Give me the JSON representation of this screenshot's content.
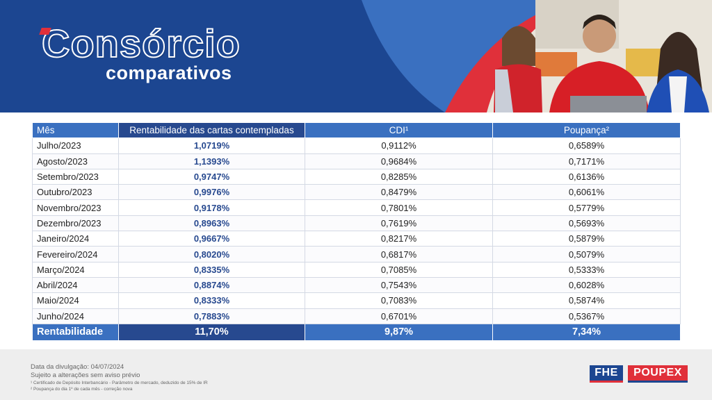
{
  "header": {
    "title": "Consórcio",
    "subtitle": "comparativos"
  },
  "table": {
    "columns": [
      "Mês",
      "Rentabilidade das cartas contempladas",
      "CDI¹",
      "Poupança²"
    ],
    "rows": [
      {
        "month": "Julho/2023",
        "rentabilidade": "1,0719%",
        "cdi": "0,9112%",
        "poupanca": "0,6589%"
      },
      {
        "month": "Agosto/2023",
        "rentabilidade": "1,1393%",
        "cdi": "0,9684%",
        "poupanca": "0,7171%"
      },
      {
        "month": "Setembro/2023",
        "rentabilidade": "0,9747%",
        "cdi": "0,8285%",
        "poupanca": "0,6136%"
      },
      {
        "month": "Outubro/2023",
        "rentabilidade": "0,9976%",
        "cdi": "0,8479%",
        "poupanca": "0,6061%"
      },
      {
        "month": "Novembro/2023",
        "rentabilidade": "0,9178%",
        "cdi": "0,7801%",
        "poupanca": "0,5779%"
      },
      {
        "month": "Dezembro/2023",
        "rentabilidade": "0,8963%",
        "cdi": "0,7619%",
        "poupanca": "0,5693%"
      },
      {
        "month": "Janeiro/2024",
        "rentabilidade": "0,9667%",
        "cdi": "0,8217%",
        "poupanca": "0,5879%"
      },
      {
        "month": "Fevereiro/2024",
        "rentabilidade": "0,8020%",
        "cdi": "0,6817%",
        "poupanca": "0,5079%"
      },
      {
        "month": "Março/2024",
        "rentabilidade": "0,8335%",
        "cdi": "0,7085%",
        "poupanca": "0,5333%"
      },
      {
        "month": "Abril/2024",
        "rentabilidade": "0,8874%",
        "cdi": "0,7543%",
        "poupanca": "0,6028%"
      },
      {
        "month": "Maio/2024",
        "rentabilidade": "0,8333%",
        "cdi": "0,7083%",
        "poupanca": "0,5874%"
      },
      {
        "month": "Junho/2024",
        "rentabilidade": "0,7883%",
        "cdi": "0,6701%",
        "poupanca": "0,5367%"
      }
    ],
    "total": {
      "label": "Rentabilidade",
      "rentabilidade": "11,70%",
      "cdi": "9,87%",
      "poupanca": "7,34%"
    }
  },
  "footer": {
    "date_line": "Data da divulgação: 04/07/2024",
    "notice": "Sujeito a alterações sem aviso prévio",
    "note1": "¹ Certificado de Depósito Interbancário - Parâmetro de mercado, deduzido de 15% de IR",
    "note2": "² Poupança do dia 1º de cada mês - correção nova"
  },
  "logos": {
    "fhe": "FHE",
    "poupex": "POUPEX"
  },
  "colors": {
    "brand_blue": "#1c4691",
    "header_blue": "#3a70c0",
    "dark_column": "#27498f",
    "brand_red": "#e0303a"
  }
}
